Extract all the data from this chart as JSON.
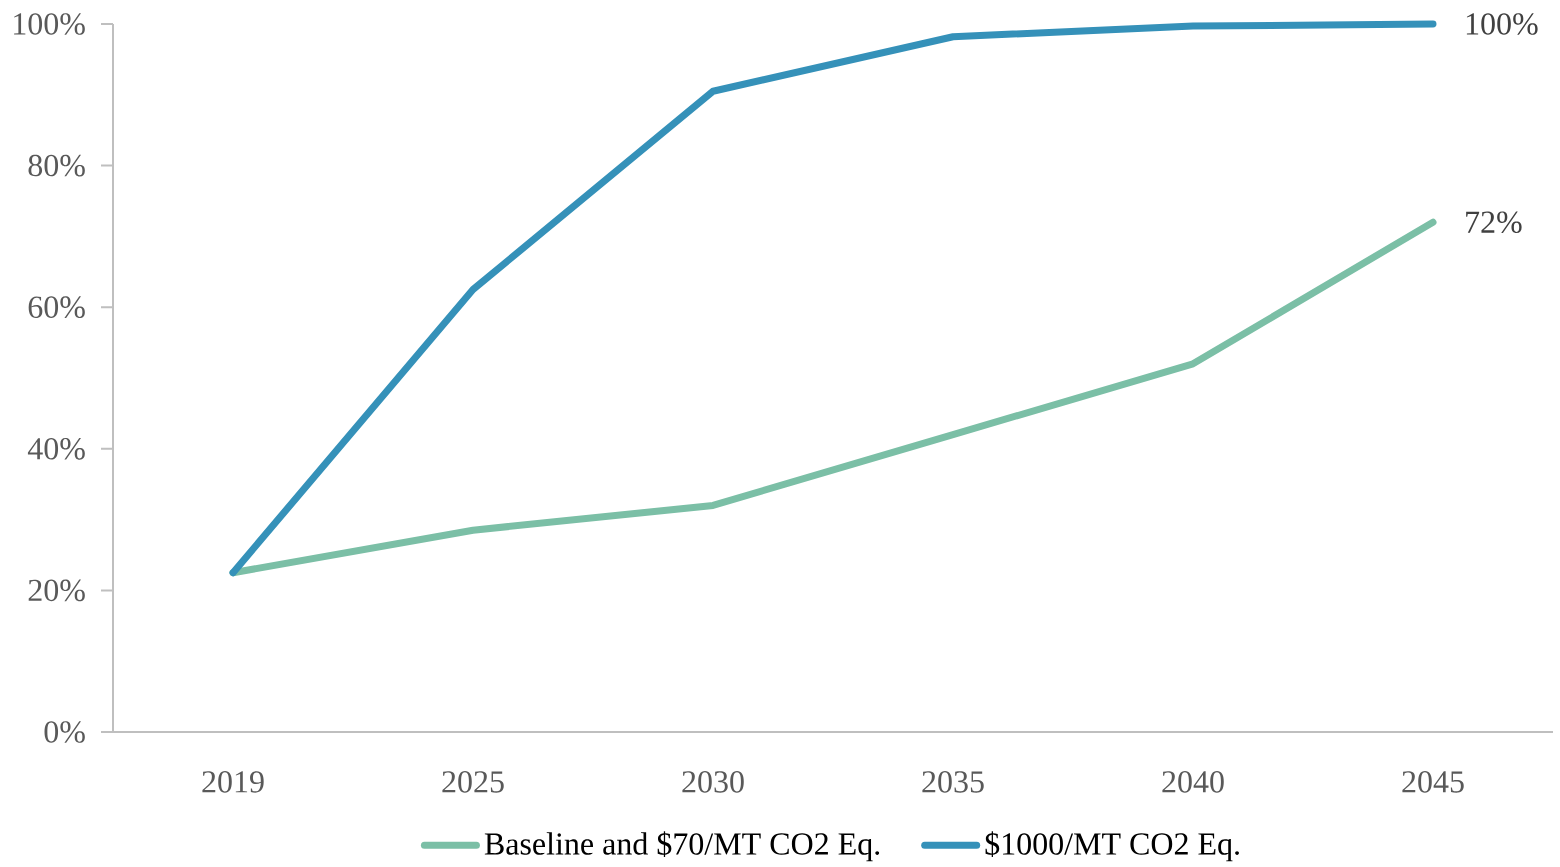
{
  "chart_data": {
    "type": "line",
    "categories": [
      "2019",
      "2025",
      "2030",
      "2035",
      "2040",
      "2045"
    ],
    "series": [
      {
        "name": "Baseline and $70/MT CO2 Eq.",
        "color": "#7bbfa6",
        "values": [
          22.5,
          28.5,
          32,
          42,
          52,
          72
        ],
        "value_labels": [
          null,
          null,
          null,
          null,
          null,
          "72%"
        ]
      },
      {
        "name": "$1000/MT CO2 Eq.",
        "color": "#3591b9",
        "values": [
          22.5,
          62.5,
          90.5,
          98.2,
          99.7,
          100
        ],
        "value_labels": [
          null,
          null,
          null,
          null,
          null,
          "100%"
        ]
      }
    ],
    "ylim": [
      0,
      100
    ],
    "yticks": [
      {
        "value": 0,
        "label": "0%"
      },
      {
        "value": 20,
        "label": "20%"
      },
      {
        "value": 40,
        "label": "40%"
      },
      {
        "value": 60,
        "label": "60%"
      },
      {
        "value": 80,
        "label": "80%"
      },
      {
        "value": 100,
        "label": "100%"
      }
    ],
    "grid": false,
    "legend": "bottom",
    "marker": "none",
    "line_style": "solid"
  }
}
